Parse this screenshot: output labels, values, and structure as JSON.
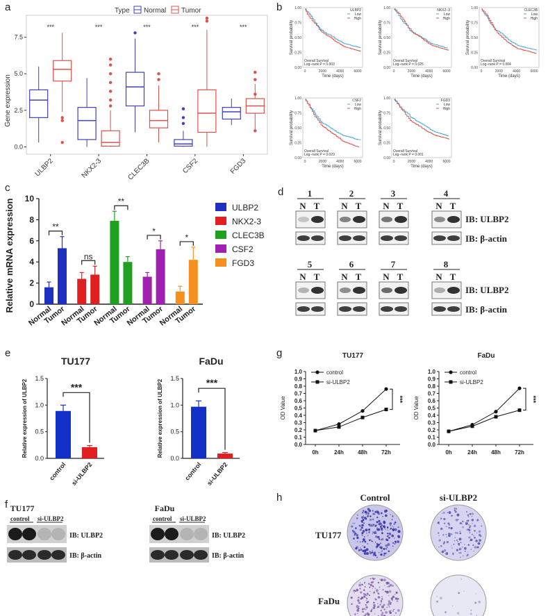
{
  "panel_letters": {
    "a": "a",
    "b": "b",
    "c": "c",
    "d": "d",
    "e": "e",
    "f": "f",
    "g": "g",
    "h": "h"
  },
  "colors": {
    "normal": "#3f3fbf",
    "tumor": "#e0504a",
    "low": "#4aa8d8",
    "high": "#e0504a",
    "ulbp2": "#1f2fbf",
    "nkx": "#e02020",
    "clec": "#20a020",
    "csf": "#a020b0",
    "fgd": "#f59020",
    "blue_bar": "#1230c8",
    "red_bar": "#e02020"
  },
  "chart_data": [
    {
      "id": "a",
      "type": "box",
      "legend_title": "Type",
      "legend": [
        "Normal",
        "Tumor"
      ],
      "ylabel": "Gene expression",
      "yticks": [
        "0.0",
        "2.5",
        "5.0",
        "7.5"
      ],
      "ylim": [
        -0.5,
        9
      ],
      "categories": [
        "ULBP2",
        "NKX2-3",
        "CLEC3B",
        "CSF2",
        "FGD3"
      ],
      "significance": [
        "***",
        "***",
        "***",
        "***",
        "***"
      ],
      "normal": [
        {
          "min": 0.3,
          "q1": 2.0,
          "med": 3.2,
          "q3": 3.9,
          "max": 5.5
        },
        {
          "min": 0.0,
          "q1": 0.5,
          "med": 1.8,
          "q3": 2.7,
          "max": 4.7
        },
        {
          "min": 1.0,
          "q1": 2.8,
          "med": 4.1,
          "q3": 5.1,
          "max": 7.4
        },
        {
          "min": 0.0,
          "q1": 0.05,
          "med": 0.2,
          "q3": 0.5,
          "max": 1.1
        },
        {
          "min": 1.5,
          "q1": 1.9,
          "med": 2.4,
          "q3": 2.7,
          "max": 3.3
        }
      ],
      "tumor": [
        {
          "min": 2.4,
          "q1": 4.5,
          "med": 5.3,
          "q3": 5.9,
          "max": 7.8
        },
        {
          "min": 0.0,
          "q1": 0.05,
          "med": 0.3,
          "q3": 1.1,
          "max": 2.5
        },
        {
          "min": 0.3,
          "q1": 1.3,
          "med": 1.8,
          "q3": 2.5,
          "max": 4.2
        },
        {
          "min": 0.0,
          "q1": 1.0,
          "med": 2.3,
          "q3": 3.9,
          "max": 8.0
        },
        {
          "min": 1.2,
          "q1": 2.3,
          "med": 2.8,
          "q3": 3.3,
          "max": 4.3
        }
      ]
    },
    {
      "id": "b",
      "type": "line",
      "xlabel": "Time (days)",
      "ylabel": "Survival probability",
      "xticks": [
        "0",
        "2000",
        "4000",
        "6000"
      ],
      "yticks": [
        "0.00",
        "0.25",
        "0.50",
        "0.75",
        "1.00"
      ],
      "legend": [
        "Low",
        "High"
      ],
      "caption": "Overall Survival",
      "plots": [
        {
          "gene": "ULBP2",
          "pval": "Log−rank P = 0.003"
        },
        {
          "gene": "NKX2−3",
          "pval": "Log−rank P = 0.025"
        },
        {
          "gene": "CLEC3B",
          "pval": "Log−rank P = 0.004"
        },
        {
          "gene": "CSF2",
          "pval": "Log−rank P = 0.029"
        },
        {
          "gene": "FGD3",
          "pval": "Log−rank P = 0.001"
        }
      ]
    },
    {
      "id": "c",
      "type": "bar",
      "ylabel": "Relative mRNA expression",
      "yticks": [
        "0",
        "2",
        "4",
        "6",
        "8",
        "10"
      ],
      "ylim": [
        0,
        10
      ],
      "xlabels": [
        "Normal",
        "Tumor"
      ],
      "legend": [
        "ULBP2",
        "NKX2-3",
        "CLEC3B",
        "CSF2",
        "FGD3"
      ],
      "groups": [
        {
          "gene": "ULBP2",
          "values": [
            1.6,
            5.3
          ],
          "err": [
            0.5,
            1.1
          ],
          "sig": "**"
        },
        {
          "gene": "NKX2-3",
          "values": [
            2.4,
            2.8
          ],
          "err": [
            0.6,
            0.8
          ],
          "sig": "ns"
        },
        {
          "gene": "CLEC3B",
          "values": [
            7.9,
            4.0
          ],
          "err": [
            0.9,
            0.5
          ],
          "sig": "**"
        },
        {
          "gene": "CSF2",
          "values": [
            2.6,
            5.2
          ],
          "err": [
            0.4,
            0.8
          ],
          "sig": "*"
        },
        {
          "gene": "FGD3",
          "values": [
            1.2,
            4.2
          ],
          "err": [
            0.5,
            1.2
          ],
          "sig": "*"
        }
      ]
    },
    {
      "id": "e1",
      "type": "bar",
      "title": "TU177",
      "ylabel": "Relative expression of ULBP2",
      "categories": [
        "control",
        "si-ULBP2"
      ],
      "values": [
        0.89,
        0.21
      ],
      "err": [
        0.11,
        0.03
      ],
      "yticks": [
        "0.0",
        "0.5",
        "1.0",
        "1.5"
      ],
      "ylim": [
        0,
        1.5
      ],
      "sig": "***"
    },
    {
      "id": "e2",
      "type": "bar",
      "title": "FaDu",
      "ylabel": "Relative expression of ULBP2",
      "categories": [
        "control",
        "si-ULBP2"
      ],
      "values": [
        0.97,
        0.09
      ],
      "err": [
        0.11,
        0.02
      ],
      "yticks": [
        "0.0",
        "0.5",
        "1.0",
        "1.5"
      ],
      "ylim": [
        0,
        1.5
      ],
      "sig": "***"
    },
    {
      "id": "g1",
      "type": "line",
      "title": "TU177",
      "ylabel": "OD Value",
      "x": [
        "0h",
        "24h",
        "48h",
        "72h"
      ],
      "yticks": [
        "0.0",
        "0.1",
        "0.2",
        "0.3",
        "0.4",
        "0.5",
        "0.6",
        "0.7",
        "0.8",
        "0.9",
        "1.0"
      ],
      "ylim": [
        0,
        1.0
      ],
      "series": [
        {
          "name": "control",
          "values": [
            0.19,
            0.28,
            0.46,
            0.76
          ]
        },
        {
          "name": "si-ULBP2",
          "values": [
            0.19,
            0.24,
            0.37,
            0.48
          ]
        }
      ],
      "sig": "***"
    },
    {
      "id": "g2",
      "type": "line",
      "title": "FaDu",
      "ylabel": "OD Value",
      "x": [
        "0h",
        "24h",
        "48h",
        "72h"
      ],
      "yticks": [
        "0.0",
        "0.1",
        "0.2",
        "0.3",
        "0.4",
        "0.5",
        "0.6",
        "0.7",
        "0.8",
        "0.9",
        "1.0"
      ],
      "ylim": [
        0,
        1.0
      ],
      "series": [
        {
          "name": "control",
          "values": [
            0.18,
            0.27,
            0.45,
            0.77
          ]
        },
        {
          "name": "si-ULBP2",
          "values": [
            0.18,
            0.25,
            0.38,
            0.47
          ]
        }
      ],
      "sig": "***"
    }
  ],
  "blot_d": {
    "lanes": [
      "N",
      "T"
    ],
    "samples": [
      "1",
      "2",
      "3",
      "4",
      "5",
      "6",
      "7",
      "8"
    ],
    "ib_ulbp2": "IB: ULBP2",
    "ib_actin": "IB: β-actin"
  },
  "blot_f": [
    {
      "title": "TU177",
      "col1": "control",
      "col2": "si-ULBP2",
      "ib_ulbp2": "IB: ULBP2",
      "ib_actin": "IB: β-actin"
    },
    {
      "title": "FaDu",
      "col1": "control",
      "col2": "si-ULBP2",
      "ib_ulbp2": "IB: ULBP2",
      "ib_actin": "IB: β-actin"
    }
  ],
  "colony_h": {
    "col1": "Control",
    "col2": "si-ULBP2",
    "row1": "TU177",
    "row2": "FaDu"
  }
}
